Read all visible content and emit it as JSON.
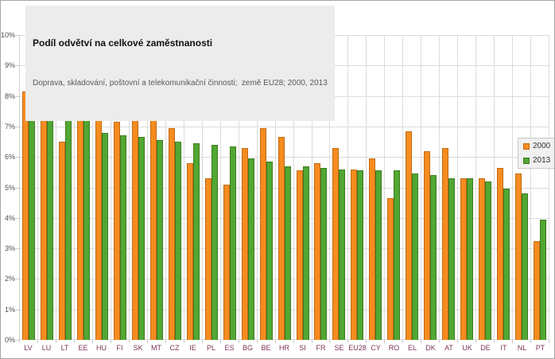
{
  "header": {
    "title": "Podíl odvětví na celkové zaměstnanosti",
    "subtitle": "Doprava, skladování, poštovní a telekomunikační činnosti;  země EU28; 2000, 2013"
  },
  "chart_data": {
    "type": "bar",
    "title": "Podíl odvětví na celkové zaměstnanosti",
    "subtitle": "Doprava, skladování, poštovní a telekomunikační činnosti; země EU28; 2000, 2013",
    "categories": [
      "LV",
      "LU",
      "LT",
      "EE",
      "HU",
      "FI",
      "SK",
      "MT",
      "CZ",
      "IE",
      "PL",
      "ES",
      "BG",
      "BE",
      "HR",
      "SI",
      "FR",
      "SE",
      "EU28",
      "CY",
      "RO",
      "EL",
      "DK",
      "AT",
      "UK",
      "DE",
      "IT",
      "NL",
      "PT"
    ],
    "series": [
      {
        "name": "2000",
        "color": "#f68c20",
        "border_color": "#c06a10",
        "values": [
          8.15,
          8.0,
          6.5,
          9.4,
          7.35,
          7.15,
          7.6,
          7.75,
          6.95,
          5.8,
          5.3,
          5.1,
          6.3,
          6.95,
          6.65,
          5.55,
          5.8,
          6.3,
          5.6,
          5.95,
          4.65,
          6.85,
          6.2,
          6.3,
          5.3,
          5.3,
          5.65,
          5.45,
          3.25
        ]
      },
      {
        "name": "2013",
        "color": "#52a733",
        "border_color": "#3c7a1e",
        "values": [
          8.8,
          8.55,
          7.8,
          7.6,
          6.8,
          6.7,
          6.65,
          6.55,
          6.5,
          6.45,
          6.4,
          6.35,
          5.95,
          5.85,
          5.7,
          5.7,
          5.65,
          5.6,
          5.55,
          5.55,
          5.55,
          5.45,
          5.4,
          5.3,
          5.3,
          5.2,
          4.95,
          4.8,
          3.95
        ]
      }
    ],
    "xlabel": "",
    "ylabel": "",
    "ylim": [
      0,
      10
    ],
    "y_tick_step": 1,
    "y_tick_suffix": "%",
    "y_tick_labels": [
      "0%",
      "1%",
      "2%",
      "3%",
      "4%",
      "5%",
      "6%",
      "7%",
      "8%",
      "9%",
      "10%"
    ],
    "grid": "horizontal-and-vertical",
    "legend_position": "inside-right"
  },
  "colors": {
    "grid": "#dbdbdb",
    "x_label": "#7d3457",
    "y_label": "#4d4d4d",
    "title_box_bg": "#ececec",
    "legend_bg": "#f1f1f1",
    "frame_border": "#a6a6a6"
  }
}
